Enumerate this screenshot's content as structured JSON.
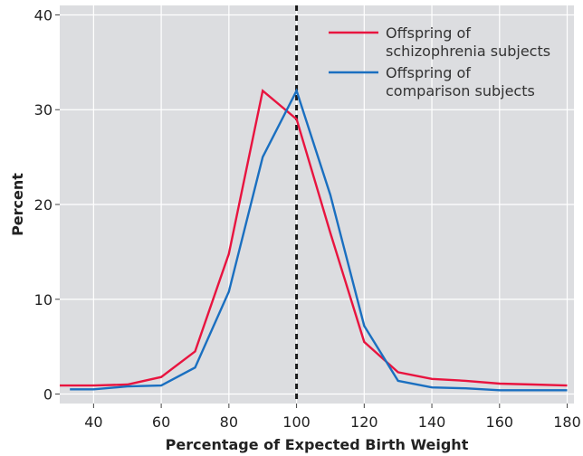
{
  "chart_data": {
    "type": "line",
    "title": "",
    "xlabel": "Percentage of Expected Birth Weight",
    "ylabel": "Percent",
    "xlim": [
      30,
      182
    ],
    "ylim": [
      -1,
      41
    ],
    "x_ticks": [
      40,
      60,
      80,
      100,
      120,
      140,
      160,
      180
    ],
    "y_ticks": [
      0,
      10,
      20,
      30,
      40
    ],
    "grid": true,
    "legend_position": "top-right",
    "reference_line": {
      "x": 100,
      "style": "dashed",
      "color": "#1a1a1a"
    },
    "series": [
      {
        "name": "Offspring of schizophrenia subjects",
        "legend_lines": [
          "Offspring of",
          "schizophrenia subjects"
        ],
        "color": "#e8143f",
        "x": [
          30,
          40,
          50,
          60,
          70,
          80,
          90,
          100,
          110,
          120,
          130,
          140,
          150,
          160,
          170,
          180
        ],
        "y": [
          0.9,
          0.9,
          1.0,
          1.8,
          4.5,
          14.8,
          32.0,
          29.0,
          17.0,
          5.5,
          2.3,
          1.6,
          1.4,
          1.1,
          1.0,
          0.9
        ]
      },
      {
        "name": "Offspring of comparison subjects",
        "legend_lines": [
          "Offspring of",
          "comparison subjects"
        ],
        "color": "#1a6fc0",
        "x": [
          33,
          40,
          50,
          60,
          70,
          80,
          90,
          100,
          110,
          120,
          130,
          140,
          150,
          160,
          170,
          180
        ],
        "y": [
          0.5,
          0.5,
          0.8,
          0.9,
          2.8,
          10.8,
          25.0,
          32.0,
          21.0,
          7.2,
          1.4,
          0.7,
          0.6,
          0.4,
          0.4,
          0.4
        ]
      }
    ]
  },
  "colors": {
    "plot_background": "#dcdde0",
    "grid": "#ffffff",
    "text": "#222222"
  }
}
